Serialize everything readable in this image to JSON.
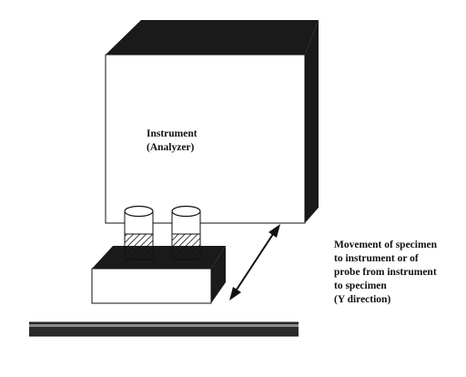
{
  "diagram": {
    "instrument_label": {
      "line1": "Instrument",
      "line2": "(Analyzer)"
    },
    "movement_label": {
      "line1": "Movement of specimen",
      "line2": "to instrument or of",
      "line3": "probe from instrument",
      "line4": "to specimen",
      "line5": "(Y direction)"
    }
  },
  "colors": {
    "ink": "#111111",
    "shadow": "#1a1a1a",
    "paper": "#ffffff"
  }
}
